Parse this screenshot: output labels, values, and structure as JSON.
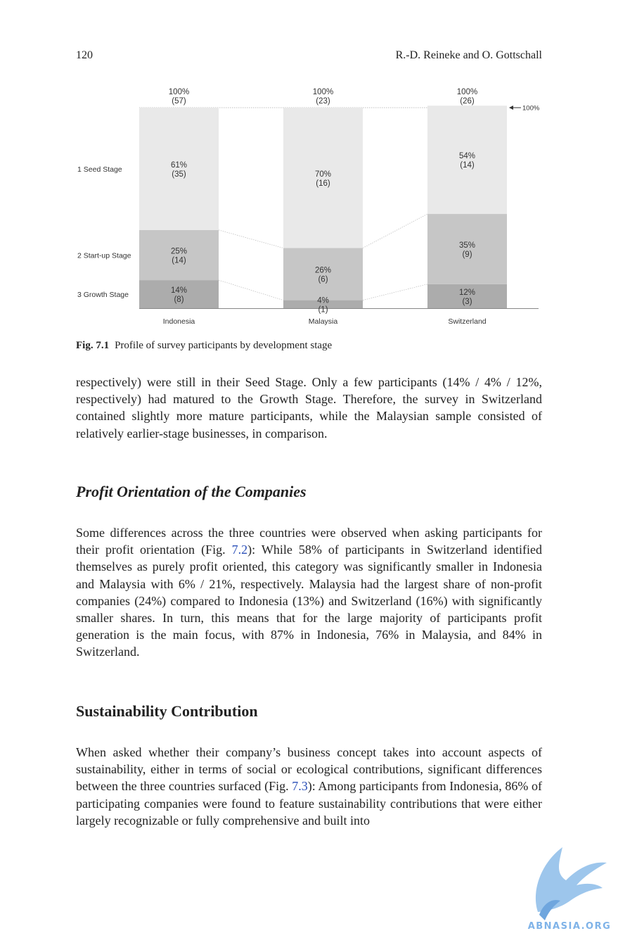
{
  "header": {
    "page_number": "120",
    "authors": "R.-D. Reineke and O. Gottschall"
  },
  "chart_data": {
    "type": "bar",
    "stacked": true,
    "categories": [
      "Indonesia",
      "Malaysia",
      "Switzerland"
    ],
    "totals": [
      {
        "pct": "100%",
        "n": "(57)"
      },
      {
        "pct": "100%",
        "n": "(23)"
      },
      {
        "pct": "100%",
        "n": "(26)"
      }
    ],
    "hundred_marker": "100%",
    "series": [
      {
        "name": "1 Seed Stage",
        "color": "#e9e9e9",
        "values": [
          61,
          70,
          54
        ],
        "labels": [
          [
            "61%",
            "(35)"
          ],
          [
            "70%",
            "(16)"
          ],
          [
            "54%",
            "(14)"
          ]
        ]
      },
      {
        "name": "2 Start-up Stage",
        "color": "#c6c6c6",
        "values": [
          25,
          26,
          35
        ],
        "labels": [
          [
            "25%",
            "(14)"
          ],
          [
            "26%",
            "(6)"
          ],
          [
            "35%",
            "(9)"
          ]
        ]
      },
      {
        "name": "3 Growth Stage",
        "color": "#acacac",
        "values": [
          14,
          4,
          12
        ],
        "labels": [
          [
            "14%",
            "(8)"
          ],
          [
            "4%",
            "(1)"
          ],
          [
            "12%",
            "(3)"
          ]
        ]
      }
    ],
    "ylim": [
      0,
      100
    ],
    "grid": false
  },
  "caption": {
    "label": "Fig. 7.1",
    "text": "Profile of survey participants by development stage"
  },
  "para1": "respectively) were still in their Seed Stage. Only a few participants (14% / 4% / 12%, respectively) had matured to the Growth Stage. Therefore, the survey in Switzerland contained slightly more mature participants, while the Malaysian sample consisted of relatively earlier-stage businesses, in comparison.",
  "heading1": "Profit Orientation of the Companies",
  "para2": {
    "before": "Some differences across the three countries were observed when asking participants for their profit orientation (Fig. ",
    "link": "7.2",
    "after": "): While 58% of participants in Switzerland identified themselves as purely profit oriented, this category was significantly smaller in Indonesia and Malaysia with 6% / 21%, respectively. Malaysia had the largest share of non-profit companies (24%) compared to Indonesia (13%) and Switzerland (16%) with significantly smaller shares. In turn, this means that for the large majority of participants profit generation is the main focus, with 87% in Indonesia, 76% in Malaysia, and 84% in Switzerland."
  },
  "heading2": "Sustainability Contribution",
  "para3": {
    "before": "When asked whether their company’s business concept takes into account aspects of sustainability, either in terms of social or ecological contributions, significant differences between the three countries surfaced (Fig. ",
    "link": "7.3",
    "after": "): Among participants from Indonesia, 86% of participating companies were found to feature sustainability contributions that were either largely recognizable or fully comprehensive and built into"
  },
  "watermark": {
    "text": "ABNASIA.ORG",
    "icon": "bird-logo-icon",
    "color": "#7fb3e8"
  }
}
